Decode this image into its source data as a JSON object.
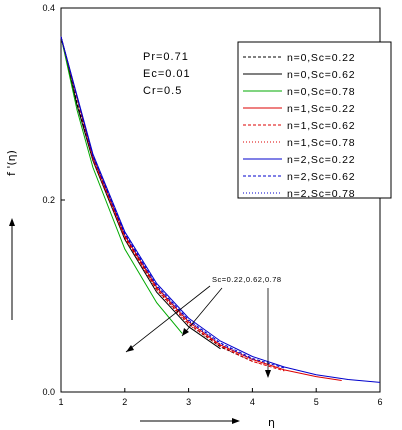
{
  "chart_data": {
    "type": "line",
    "xlabel": "η",
    "ylabel": "f '(η)",
    "xlim": [
      1,
      6
    ],
    "ylim": [
      0,
      0.4
    ],
    "x_ticks": [
      "1",
      "2",
      "3",
      "4",
      "5",
      "6"
    ],
    "y_ticks": [
      "0.0",
      "0.2",
      "0.4"
    ],
    "parameters": [
      "Pr=0.71",
      "Ec=0.01",
      "Cr=0.5"
    ],
    "annotation": "Sc=0.22,0.62,0.78",
    "legend_position": "top-right",
    "series": [
      {
        "name": "n=0,Sc=0.22",
        "color": "#000000",
        "dash": "dashed",
        "x": [
          1,
          1.25,
          1.5,
          2,
          2.5,
          3,
          3.5,
          4
        ],
        "y": [
          0.37,
          0.301,
          0.244,
          0.162,
          0.107,
          0.071,
          0.047,
          0.032
        ]
      },
      {
        "name": "n=0,Sc=0.62",
        "color": "#000000",
        "dash": "solid",
        "x": [
          1,
          1.25,
          1.5,
          2,
          2.5,
          3,
          3.5
        ],
        "y": [
          0.37,
          0.299,
          0.241,
          0.159,
          0.104,
          0.068,
          0.045
        ]
      },
      {
        "name": "n=0,Sc=0.78",
        "color": "#00aa00",
        "dash": "solid",
        "x": [
          1,
          1.25,
          1.5,
          2,
          2.5,
          2.9
        ],
        "y": [
          0.37,
          0.294,
          0.234,
          0.149,
          0.093,
          0.061
        ]
      },
      {
        "name": "n=1,Sc=0.22",
        "color": "#dd0000",
        "dash": "solid",
        "x": [
          1,
          1.5,
          2,
          2.5,
          3,
          3.5,
          4,
          4.5,
          5,
          5.4
        ],
        "y": [
          0.37,
          0.245,
          0.163,
          0.109,
          0.073,
          0.049,
          0.034,
          0.023,
          0.016,
          0.012
        ]
      },
      {
        "name": "n=1,Sc=0.62",
        "color": "#dd0000",
        "dash": "dashed",
        "x": [
          1,
          1.5,
          2,
          2.5,
          3,
          3.5,
          4,
          4.5
        ],
        "y": [
          0.37,
          0.243,
          0.161,
          0.107,
          0.071,
          0.048,
          0.032,
          0.022
        ]
      },
      {
        "name": "n=1,Sc=0.78",
        "color": "#dd0000",
        "dash": "dotted",
        "x": [
          1,
          1.5,
          2,
          2.5,
          3,
          3.5,
          4,
          4.2
        ],
        "y": [
          0.37,
          0.242,
          0.16,
          0.106,
          0.07,
          0.047,
          0.032,
          0.028
        ]
      },
      {
        "name": "n=2,Sc=0.22",
        "color": "#0000cc",
        "dash": "solid",
        "x": [
          1,
          1.5,
          2,
          2.5,
          3,
          3.5,
          4,
          4.5,
          5,
          5.5,
          6
        ],
        "y": [
          0.37,
          0.248,
          0.167,
          0.113,
          0.077,
          0.053,
          0.037,
          0.026,
          0.018,
          0.013,
          0.01
        ]
      },
      {
        "name": "n=2,Sc=0.62",
        "color": "#0000cc",
        "dash": "dashed",
        "x": [
          1,
          1.5,
          2,
          2.5,
          3,
          3.5,
          4,
          4.5
        ],
        "y": [
          0.37,
          0.246,
          0.165,
          0.111,
          0.075,
          0.051,
          0.035,
          0.025
        ]
      },
      {
        "name": "n=2,Sc=0.78",
        "color": "#0000cc",
        "dash": "dotted",
        "x": [
          1,
          1.5,
          2,
          2.5,
          3,
          3.5,
          4
        ],
        "y": [
          0.37,
          0.245,
          0.164,
          0.11,
          0.074,
          0.05,
          0.034
        ]
      }
    ]
  }
}
